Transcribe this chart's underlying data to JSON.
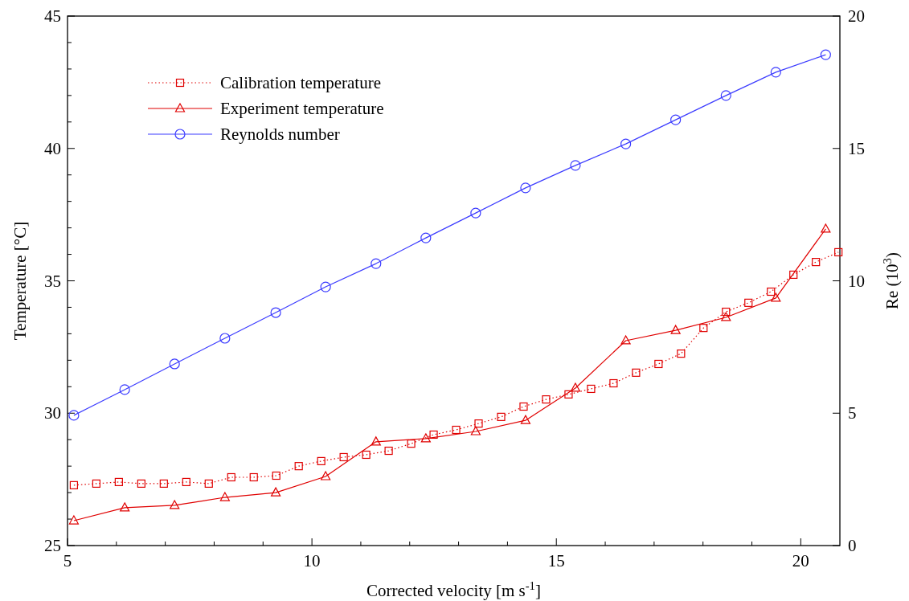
{
  "chart_data": {
    "type": "line",
    "xlabel": "Corrected velocity [m s$^{-1}$]",
    "ylabel": "Temperature [°C]",
    "y2label": "Re (10$^{3}$)",
    "xlim": [
      5,
      20.8
    ],
    "ylim": [
      25,
      45
    ],
    "y2lim": [
      0,
      20
    ],
    "xticks": [
      5,
      {
        "value": 6,
        "label": null
      },
      {
        "value": 7,
        "label": null
      },
      {
        "value": 8,
        "label": null
      },
      {
        "value": 9,
        "label": null
      },
      10,
      {
        "value": 11,
        "label": null
      },
      {
        "value": 12,
        "label": null
      },
      {
        "value": 13,
        "label": null
      },
      {
        "value": 14,
        "label": null
      },
      15,
      {
        "value": 16,
        "label": null
      },
      {
        "value": 17,
        "label": null
      },
      {
        "value": 18,
        "label": null
      },
      {
        "value": 19,
        "label": null
      },
      20
    ],
    "yticks": [
      25,
      {
        "value": 26,
        "label": null
      },
      {
        "value": 27,
        "label": null
      },
      {
        "value": 28,
        "label": null
      },
      {
        "value": 29,
        "label": null
      },
      30,
      {
        "value": 31,
        "label": null
      },
      {
        "value": 32,
        "label": null
      },
      {
        "value": 33,
        "label": null
      },
      {
        "value": 34,
        "label": null
      },
      35,
      {
        "value": 36,
        "label": null
      },
      {
        "value": 37,
        "label": null
      },
      {
        "value": 38,
        "label": null
      },
      {
        "value": 39,
        "label": null
      },
      40,
      {
        "value": 41,
        "label": null
      },
      {
        "value": 42,
        "label": null
      },
      {
        "value": 43,
        "label": null
      },
      {
        "value": 44,
        "label": null
      },
      45
    ],
    "y2ticks": [
      0,
      5,
      10,
      15,
      20
    ],
    "grid": false,
    "legend": "top left",
    "series": [
      {
        "name": "Calibration temperature",
        "color": "#e00000",
        "marker": "square",
        "line_style": "dotted",
        "x": [
          5.13,
          5.59,
          6.05,
          6.51,
          6.97,
          7.43,
          7.89,
          8.35,
          8.81,
          9.27,
          9.73,
          10.19,
          10.65,
          11.11,
          11.57,
          12.03,
          12.49,
          12.95,
          13.41,
          13.87,
          14.33,
          14.79,
          15.25,
          15.71,
          16.17,
          16.63,
          17.09,
          17.55,
          18.01,
          18.47,
          18.93,
          19.39,
          19.85,
          20.31,
          20.77
        ],
        "values": [
          27.28,
          27.34,
          27.4,
          27.34,
          27.34,
          27.4,
          27.34,
          27.58,
          27.58,
          27.64,
          28.0,
          28.19,
          28.34,
          28.43,
          28.58,
          28.85,
          29.19,
          29.37,
          29.61,
          29.86,
          30.25,
          30.52,
          30.71,
          30.92,
          31.13,
          31.53,
          31.86,
          32.25,
          33.22,
          33.83,
          34.17,
          34.59,
          35.23,
          35.71,
          36.08
        ]
      },
      {
        "name": "Experiment temperature",
        "color": "#e00000",
        "marker": "triangle",
        "line_style": "solid",
        "x": [
          5.13,
          6.17,
          7.19,
          8.22,
          9.26,
          10.28,
          11.31,
          12.33,
          13.35,
          14.37,
          15.39,
          16.42,
          17.44,
          18.47,
          19.49,
          20.51
        ],
        "values": [
          25.94,
          26.43,
          26.52,
          26.82,
          27.0,
          27.61,
          28.92,
          29.04,
          29.31,
          29.73,
          30.95,
          32.74,
          33.13,
          33.62,
          34.35,
          36.96
        ]
      },
      {
        "name": "Reynolds number",
        "color": "#3c3cff",
        "marker": "circle",
        "line_style": "solid",
        "axis": "y2",
        "x": [
          5.13,
          6.17,
          7.19,
          8.22,
          9.26,
          10.28,
          11.31,
          12.33,
          13.35,
          14.37,
          15.39,
          16.42,
          17.44,
          18.47,
          19.49,
          20.51
        ],
        "values": [
          4.92,
          5.89,
          6.86,
          7.83,
          8.8,
          9.77,
          10.65,
          11.62,
          12.56,
          13.51,
          14.36,
          15.17,
          16.08,
          17.0,
          17.88,
          18.54
        ]
      }
    ]
  }
}
